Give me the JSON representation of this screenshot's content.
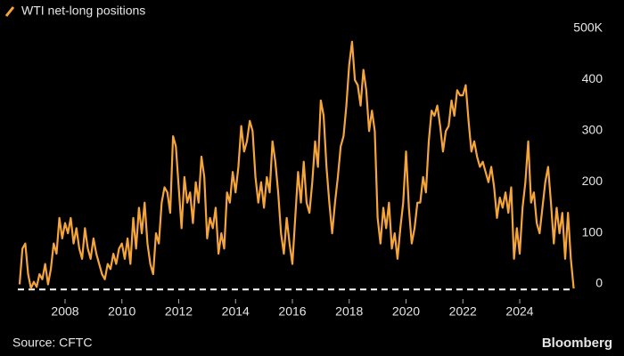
{
  "chart_data": {
    "type": "line",
    "source": "Source: CFTC",
    "brand": "Bloomberg",
    "x": [
      2006.4,
      2006.5,
      2006.6,
      2006.7,
      2006.8,
      2006.9,
      2007.0,
      2007.1,
      2007.2,
      2007.3,
      2007.4,
      2007.5,
      2007.6,
      2007.7,
      2007.8,
      2007.9,
      2008.0,
      2008.1,
      2008.2,
      2008.3,
      2008.4,
      2008.5,
      2008.6,
      2008.7,
      2008.8,
      2008.9,
      2009.0,
      2009.1,
      2009.2,
      2009.3,
      2009.4,
      2009.5,
      2009.6,
      2009.7,
      2009.8,
      2009.9,
      2010.0,
      2010.1,
      2010.2,
      2010.3,
      2010.4,
      2010.5,
      2010.6,
      2010.7,
      2010.8,
      2010.9,
      2011.0,
      2011.1,
      2011.2,
      2011.3,
      2011.4,
      2011.5,
      2011.6,
      2011.7,
      2011.8,
      2011.9,
      2012.0,
      2012.1,
      2012.2,
      2012.3,
      2012.4,
      2012.5,
      2012.6,
      2012.7,
      2012.8,
      2012.9,
      2013.0,
      2013.1,
      2013.2,
      2013.3,
      2013.4,
      2013.5,
      2013.6,
      2013.7,
      2013.8,
      2013.9,
      2014.0,
      2014.1,
      2014.2,
      2014.3,
      2014.4,
      2014.5,
      2014.6,
      2014.7,
      2014.8,
      2014.9,
      2015.0,
      2015.1,
      2015.2,
      2015.3,
      2015.4,
      2015.5,
      2015.6,
      2015.7,
      2015.8,
      2015.9,
      2016.0,
      2016.1,
      2016.2,
      2016.3,
      2016.4,
      2016.5,
      2016.6,
      2016.7,
      2016.8,
      2016.9,
      2017.0,
      2017.1,
      2017.2,
      2017.3,
      2017.4,
      2017.5,
      2017.6,
      2017.7,
      2017.8,
      2017.9,
      2018.0,
      2018.1,
      2018.2,
      2018.3,
      2018.4,
      2018.5,
      2018.6,
      2018.7,
      2018.8,
      2018.9,
      2019.0,
      2019.1,
      2019.2,
      2019.3,
      2019.4,
      2019.5,
      2019.6,
      2019.7,
      2019.8,
      2019.9,
      2020.0,
      2020.1,
      2020.2,
      2020.3,
      2020.4,
      2020.5,
      2020.6,
      2020.7,
      2020.8,
      2020.9,
      2021.0,
      2021.1,
      2021.2,
      2021.3,
      2021.4,
      2021.5,
      2021.6,
      2021.7,
      2021.8,
      2021.9,
      2022.0,
      2022.1,
      2022.2,
      2022.3,
      2022.4,
      2022.5,
      2022.6,
      2022.7,
      2022.8,
      2022.9,
      2023.0,
      2023.1,
      2023.2,
      2023.3,
      2023.4,
      2023.5,
      2023.6,
      2023.7,
      2023.8,
      2023.9,
      2024.0,
      2024.1,
      2024.2,
      2024.3,
      2024.4,
      2024.5,
      2024.6,
      2024.7,
      2024.8,
      2024.9,
      2025.0,
      2025.1,
      2025.2,
      2025.3,
      2025.4,
      2025.5,
      2025.6,
      2025.7,
      2025.8,
      2025.9
    ],
    "series": [
      {
        "name": "WTI net-long positions",
        "color": "#f5a53a",
        "values": [
          20,
          90,
          100,
          40,
          12,
          25,
          15,
          40,
          30,
          60,
          20,
          50,
          100,
          80,
          150,
          110,
          140,
          120,
          150,
          100,
          130,
          90,
          70,
          130,
          90,
          70,
          110,
          80,
          60,
          40,
          30,
          60,
          50,
          80,
          60,
          90,
          100,
          70,
          110,
          60,
          150,
          90,
          170,
          120,
          180,
          100,
          60,
          40,
          120,
          100,
          180,
          210,
          200,
          160,
          310,
          290,
          210,
          130,
          230,
          180,
          200,
          140,
          220,
          180,
          270,
          230,
          110,
          150,
          130,
          170,
          80,
          120,
          90,
          200,
          180,
          240,
          200,
          250,
          330,
          280,
          300,
          340,
          320,
          230,
          180,
          220,
          170,
          230,
          200,
          300,
          260,
          200,
          120,
          80,
          150,
          100,
          60,
          150,
          240,
          180,
          260,
          180,
          160,
          220,
          300,
          250,
          380,
          350,
          250,
          180,
          120,
          180,
          230,
          290,
          310,
          370,
          450,
          495,
          420,
          410,
          370,
          440,
          400,
          320,
          360,
          320,
          150,
          100,
          170,
          130,
          180,
          90,
          120,
          70,
          130,
          180,
          280,
          170,
          100,
          130,
          180,
          180,
          230,
          200,
          300,
          360,
          350,
          370,
          330,
          280,
          320,
          330,
          380,
          350,
          400,
          390,
          390,
          410,
          340,
          280,
          300,
          270,
          250,
          260,
          240,
          220,
          250,
          210,
          150,
          190,
          170,
          200,
          160,
          210,
          70,
          130,
          80,
          170,
          220,
          300,
          180,
          200,
          140,
          120,
          170,
          220,
          250,
          180,
          100,
          170,
          120,
          160,
          70,
          160,
          70,
          12
        ]
      }
    ],
    "reference_line": 10,
    "xlim": [
      2006.3,
      2026
    ],
    "xticks": [
      2008,
      2010,
      2012,
      2014,
      2016,
      2018,
      2020,
      2022,
      2024
    ],
    "ylim": [
      0,
      500
    ],
    "yticks": [
      0,
      100,
      200,
      300,
      400,
      {
        "value": 500,
        "label": "500K"
      }
    ],
    "grid": false,
    "legend": "top-left"
  }
}
